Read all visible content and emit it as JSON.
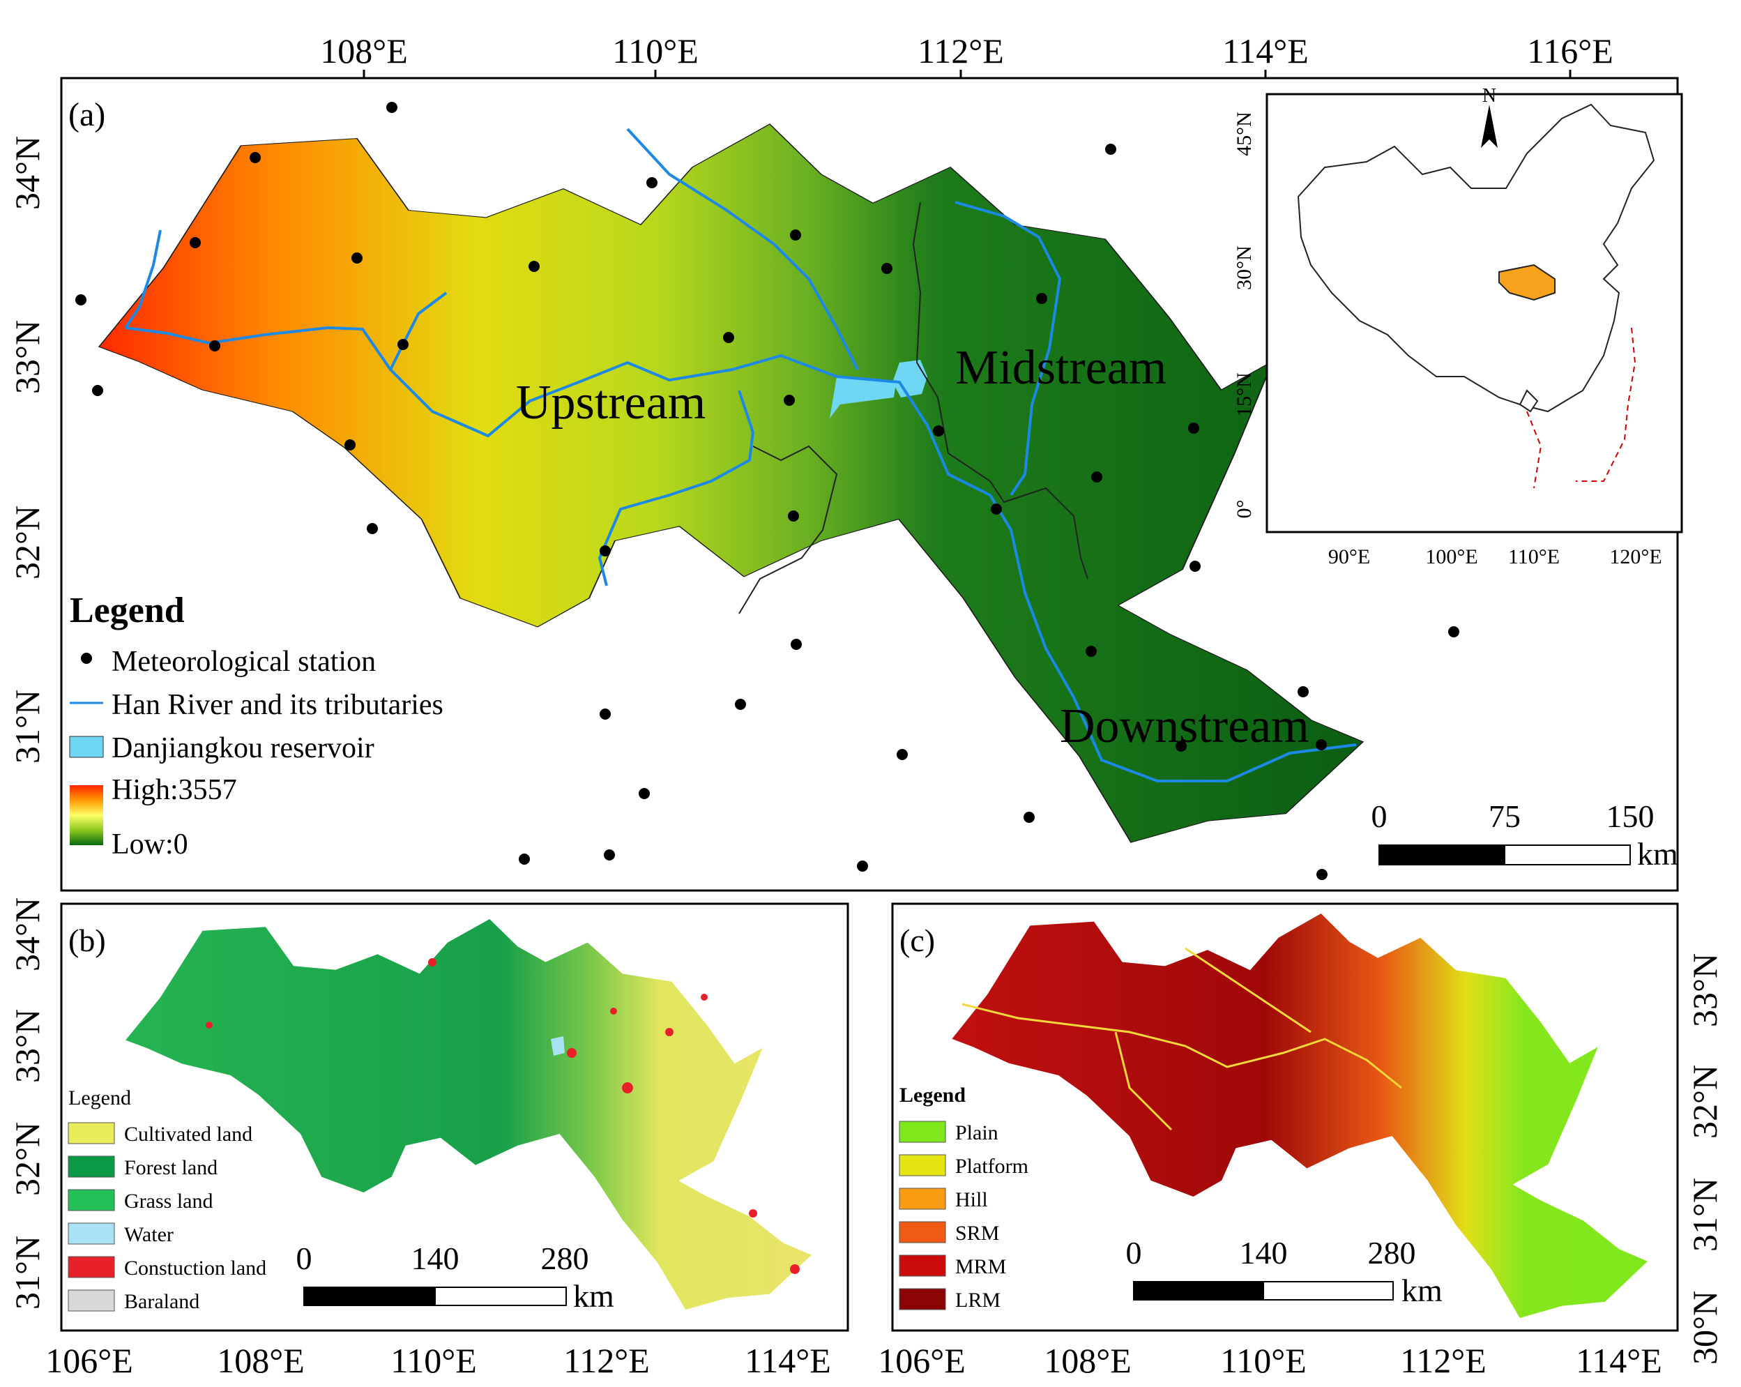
{
  "panel_a": {
    "label": "(a)",
    "top_ticks": [
      "108°E",
      "110°E",
      "112°E",
      "114°E",
      "116°E"
    ],
    "left_ticks": [
      "34°N",
      "33°N",
      "32°N",
      "31°N"
    ],
    "regions": {
      "upstream": "Upstream",
      "midstream": "Midstream",
      "downstream": "Downstream"
    },
    "legend": {
      "title": "Legend",
      "station": "Meteorological station",
      "river": "Han River and its tributaries",
      "reservoir": "Danjiangkou reservoir",
      "high": "High:3557",
      "low": "Low:0"
    },
    "scale": {
      "labels": [
        "0",
        "75",
        "150"
      ],
      "unit": "km"
    },
    "inset": {
      "north": "N",
      "lat_ticks": [
        "45°N",
        "30°N",
        "15°N",
        "0°"
      ],
      "lon_ticks": [
        "90°E",
        "100°E",
        "110°E",
        "120°E"
      ]
    }
  },
  "panel_b": {
    "label": "(b)",
    "bottom_ticks": [
      "106°E",
      "108°E",
      "110°E",
      "112°E",
      "114°E"
    ],
    "left_ticks": [
      "34°N",
      "33°N",
      "32°N",
      "31°N"
    ],
    "legend": {
      "title": "Legend",
      "items": [
        {
          "label": "Cultivated land",
          "color": "#e6ec5a"
        },
        {
          "label": "Forest land",
          "color": "#0a9a46"
        },
        {
          "label": "Grass land",
          "color": "#22c056"
        },
        {
          "label": "Water",
          "color": "#a8e2f4"
        },
        {
          "label": "Constuction land",
          "color": "#e8202a"
        },
        {
          "label": "Baraland",
          "color": "#d8d8d8"
        }
      ]
    },
    "scale": {
      "labels": [
        "0",
        "140",
        "280"
      ],
      "unit": "km"
    }
  },
  "panel_c": {
    "label": "(c)",
    "bottom_ticks": [
      "106°E",
      "108°E",
      "110°E",
      "112°E",
      "114°E"
    ],
    "right_ticks": [
      "33°N",
      "32°N",
      "31°N",
      "30°N"
    ],
    "legend": {
      "title": "Legend",
      "items": [
        {
          "label": "Plain",
          "color": "#7ee81c"
        },
        {
          "label": "Platform",
          "color": "#e4e412"
        },
        {
          "label": "Hill",
          "color": "#f89c14"
        },
        {
          "label": "SRM",
          "color": "#f05a14"
        },
        {
          "label": "MRM",
          "color": "#cc0c0c"
        },
        {
          "label": "LRM",
          "color": "#8a0404"
        }
      ]
    },
    "scale": {
      "labels": [
        "0",
        "140",
        "280"
      ],
      "unit": "km"
    }
  }
}
